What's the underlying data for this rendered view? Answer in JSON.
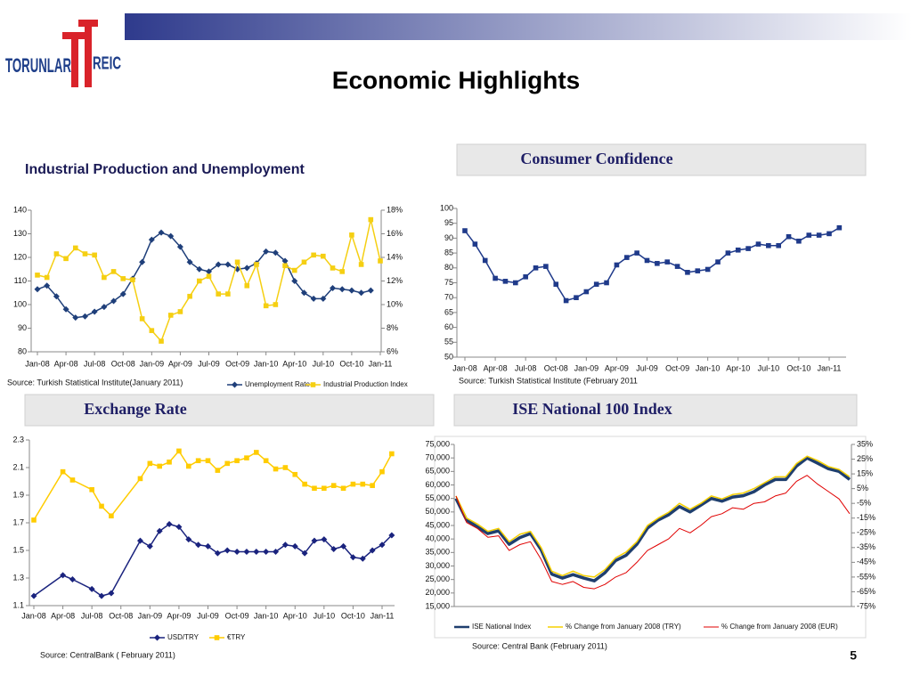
{
  "header": {
    "logo_left": "TORUNLAR",
    "logo_right": "REIC",
    "title": "Economic Highlights",
    "page_number": "5"
  },
  "chart_data": [
    {
      "type": "line",
      "title": "Industrial Production and Unemployment",
      "source": "Source: Turkish Statistical Institute(January 2011)",
      "x": [
        "2008-01",
        "2008-02",
        "2008-03",
        "2008-04",
        "2008-05",
        "2008-06",
        "2008-07",
        "2008-08",
        "2008-09",
        "2008-10",
        "2008-11",
        "2008-12",
        "2009-01",
        "2009-02",
        "2009-03",
        "2009-04",
        "2009-05",
        "2009-06",
        "2009-07",
        "2009-08",
        "2009-09",
        "2009-10",
        "2009-11",
        "2009-12",
        "2010-01",
        "2010-02",
        "2010-03",
        "2010-04",
        "2010-05",
        "2010-06",
        "2010-07",
        "2010-08",
        "2010-09",
        "2010-10",
        "2010-11",
        "2010-12",
        "2011-01"
      ],
      "xticks": [
        {
          "value": "2008-01",
          "label": "Jan-08"
        },
        {
          "value": "2008-04",
          "label": "Apr-08"
        },
        {
          "value": "2008-07",
          "label": "Jul-08"
        },
        {
          "value": "2008-10",
          "label": "Oct-08"
        },
        {
          "value": "2009-01",
          "label": "Jan-09"
        },
        {
          "value": "2009-04",
          "label": "Apr-09"
        },
        {
          "value": "2009-07",
          "label": "Jul-09"
        },
        {
          "value": "2009-10",
          "label": "Oct-09"
        },
        {
          "value": "2010-01",
          "label": "Jan-10"
        },
        {
          "value": "2010-04",
          "label": "Apr-10"
        },
        {
          "value": "2010-07",
          "label": "Jul-10"
        },
        {
          "value": "2010-10",
          "label": "Oct-10"
        },
        {
          "value": "2011-01",
          "label": "Jan-11"
        }
      ],
      "ylim": [
        80,
        140
      ],
      "yticks": [
        80,
        90,
        100,
        110,
        120,
        130,
        140
      ],
      "y2lim": [
        6,
        18
      ],
      "y2ticks": [
        {
          "value": 6,
          "label": "6%"
        },
        {
          "value": 8,
          "label": "8%"
        },
        {
          "value": 10,
          "label": "10%"
        },
        {
          "value": 12,
          "label": "12%"
        },
        {
          "value": 14,
          "label": "14%"
        },
        {
          "value": 16,
          "label": "16%"
        },
        {
          "value": 18,
          "label": "18%"
        }
      ],
      "series": [
        {
          "name": "Unemployment Rate",
          "color": "#1f3f7a",
          "marker": "diamond",
          "axis": "y2",
          "values": [
            11.3,
            11.6,
            10.7,
            9.6,
            8.9,
            9.0,
            9.4,
            9.8,
            10.3,
            10.9,
            12.2,
            13.6,
            15.5,
            16.1,
            15.8,
            14.9,
            13.6,
            13.0,
            12.8,
            13.4,
            13.4,
            13.0,
            13.1,
            13.5,
            14.5,
            14.4,
            13.7,
            12.0,
            11.0,
            10.5,
            10.5,
            11.4,
            11.3,
            11.2,
            11.0,
            11.2,
            null
          ]
        },
        {
          "name": "Industrial Production Index",
          "color": "#f5cf12",
          "marker": "square",
          "values": [
            112.5,
            111.5,
            121.5,
            119.5,
            124,
            121.5,
            121,
            111.5,
            114,
            111,
            110.5,
            94,
            89,
            84.5,
            95.5,
            97,
            103.5,
            110,
            112,
            104.5,
            104.5,
            118,
            108,
            117,
            99.5,
            100,
            116.5,
            114.5,
            118,
            121,
            120.5,
            115.5,
            114,
            129.5,
            117,
            136,
            118.5
          ]
        }
      ]
    },
    {
      "type": "line",
      "title": "Consumer Confidence",
      "source": "Source: Turkish Statistical Institute (February 2011",
      "x": [
        "2008-01",
        "2008-02",
        "2008-03",
        "2008-04",
        "2008-05",
        "2008-06",
        "2008-07",
        "2008-08",
        "2008-09",
        "2008-10",
        "2008-11",
        "2008-12",
        "2009-01",
        "2009-02",
        "2009-03",
        "2009-04",
        "2009-05",
        "2009-06",
        "2009-07",
        "2009-08",
        "2009-09",
        "2009-10",
        "2009-11",
        "2009-12",
        "2010-01",
        "2010-02",
        "2010-03",
        "2010-04",
        "2010-05",
        "2010-06",
        "2010-07",
        "2010-08",
        "2010-09",
        "2010-10",
        "2010-11",
        "2010-12",
        "2011-01",
        "2011-02"
      ],
      "xticks": [
        {
          "value": "2008-01",
          "label": "Jan-08"
        },
        {
          "value": "2008-04",
          "label": "Apr-08"
        },
        {
          "value": "2008-07",
          "label": "Jul-08"
        },
        {
          "value": "2008-10",
          "label": "Oct-08"
        },
        {
          "value": "2009-01",
          "label": "Jan-09"
        },
        {
          "value": "2009-04",
          "label": "Apr-09"
        },
        {
          "value": "2009-07",
          "label": "Jul-09"
        },
        {
          "value": "2009-10",
          "label": "Oct-09"
        },
        {
          "value": "2010-01",
          "label": "Jan-10"
        },
        {
          "value": "2010-04",
          "label": "Apr-10"
        },
        {
          "value": "2010-07",
          "label": "Jul-10"
        },
        {
          "value": "2010-10",
          "label": "Oct-10"
        },
        {
          "value": "2011-01",
          "label": "Jan-11"
        }
      ],
      "ylim": [
        50,
        100
      ],
      "yticks": [
        50,
        55,
        60,
        65,
        70,
        75,
        80,
        85,
        90,
        95,
        100
      ],
      "series": [
        {
          "color": "#1f3a8a",
          "marker": "square",
          "values": [
            92.5,
            88,
            82.5,
            76.5,
            75.5,
            75,
            77,
            80,
            80.5,
            74.5,
            69,
            70,
            72,
            74.5,
            75,
            81,
            83.5,
            85,
            82.5,
            81.5,
            82,
            80.5,
            78.5,
            79,
            79.5,
            82,
            85,
            86,
            86.5,
            88,
            87.5,
            87.5,
            90.5,
            89,
            91,
            91,
            91.5,
            93.5
          ]
        }
      ]
    },
    {
      "type": "line",
      "title": "Exchange Rate",
      "source": "Source: CentralBank ( February 2011)",
      "x": [
        "2008-01",
        "2008-04",
        "2008-05",
        "2008-07",
        "2008-08",
        "2008-09",
        "2008-12",
        "2009-01",
        "2009-02",
        "2009-03",
        "2009-04",
        "2009-05",
        "2009-06",
        "2009-07",
        "2009-08",
        "2009-09",
        "2009-10",
        "2009-11",
        "2009-12",
        "2010-01",
        "2010-02",
        "2010-03",
        "2010-04",
        "2010-05",
        "2010-06",
        "2010-07",
        "2010-08",
        "2010-09",
        "2010-10",
        "2010-11",
        "2010-12",
        "2011-01",
        "2011-02"
      ],
      "xticks": [
        {
          "value": "2008-01",
          "label": "Jan-08"
        },
        {
          "value": "2008-04",
          "label": "Apr-08"
        },
        {
          "value": "2008-07",
          "label": "Jul-08"
        },
        {
          "value": "2008-10",
          "label": "Oct-08"
        },
        {
          "value": "2009-01",
          "label": "Jan-09"
        },
        {
          "value": "2009-04",
          "label": "Apr-09"
        },
        {
          "value": "2009-07",
          "label": "Jul-09"
        },
        {
          "value": "2009-10",
          "label": "Oct-09"
        },
        {
          "value": "2010-01",
          "label": "Jan-10"
        },
        {
          "value": "2010-04",
          "label": "Apr-10"
        },
        {
          "value": "2010-07",
          "label": "Jul-10"
        },
        {
          "value": "2010-10",
          "label": "Oct-10"
        },
        {
          "value": "2011-01",
          "label": "Jan-11"
        }
      ],
      "ylim": [
        1.1,
        2.3
      ],
      "yticks": [
        1.1,
        1.3,
        1.5,
        1.7,
        1.9,
        2.1,
        2.3
      ],
      "series": [
        {
          "name": "USD/TRY",
          "color": "#1a237e",
          "marker": "diamond",
          "values": [
            1.17,
            1.32,
            1.29,
            1.22,
            1.17,
            1.19,
            1.57,
            1.53,
            1.64,
            1.69,
            1.67,
            1.58,
            1.54,
            1.53,
            1.48,
            1.5,
            1.49,
            1.49,
            1.49,
            1.49,
            1.49,
            1.54,
            1.53,
            1.48,
            1.57,
            1.58,
            1.51,
            1.53,
            1.45,
            1.44,
            1.5,
            1.54,
            1.61
          ]
        },
        {
          "name": "€TRY",
          "color": "#ffcc00",
          "marker": "square",
          "values": [
            1.72,
            2.07,
            2.01,
            1.94,
            1.82,
            1.75,
            2.02,
            2.13,
            2.11,
            2.14,
            2.22,
            2.11,
            2.15,
            2.15,
            2.08,
            2.13,
            2.15,
            2.17,
            2.21,
            2.15,
            2.09,
            2.1,
            2.05,
            1.98,
            1.95,
            1.95,
            1.97,
            1.95,
            1.98,
            1.98,
            1.97,
            2.07,
            2.2
          ]
        }
      ]
    },
    {
      "type": "line",
      "title": "ISE National 100 Index",
      "source": "Source: Central Bank (February 2011)",
      "ylim": [
        15000,
        75000
      ],
      "yticks": [
        {
          "value": 15000,
          "label": "15,000"
        },
        {
          "value": 20000,
          "label": "20,000"
        },
        {
          "value": 25000,
          "label": "25,000"
        },
        {
          "value": 30000,
          "label": "30,000"
        },
        {
          "value": 35000,
          "label": "35,000"
        },
        {
          "value": 40000,
          "label": "40,000"
        },
        {
          "value": 45000,
          "label": "45,000"
        },
        {
          "value": 50000,
          "label": "50,000"
        },
        {
          "value": 55000,
          "label": "55,000"
        },
        {
          "value": 60000,
          "label": "60,000"
        },
        {
          "value": 65000,
          "label": "65,000"
        },
        {
          "value": 70000,
          "label": "70,000"
        },
        {
          "value": 75000,
          "label": "75,000"
        }
      ],
      "y2lim": [
        -75,
        35
      ],
      "y2ticks": [
        {
          "value": 35,
          "label": "35%"
        },
        {
          "value": 25,
          "label": "25%"
        },
        {
          "value": 15,
          "label": "15%"
        },
        {
          "value": 5,
          "label": "5%"
        },
        {
          "value": -5,
          "label": "-5%"
        },
        {
          "value": -15,
          "label": "-15%"
        },
        {
          "value": -25,
          "label": "-25%"
        },
        {
          "value": -35,
          "label": "-35%"
        },
        {
          "value": -45,
          "label": "-45%"
        },
        {
          "value": -55,
          "label": "-55%"
        },
        {
          "value": -65,
          "label": "-65%"
        },
        {
          "value": -75,
          "label": "-75%"
        }
      ],
      "series": [
        {
          "name": "ISE National Index",
          "color": "#1f3f6e",
          "marker": "none",
          "width": 3.5,
          "values": [
            55000,
            47000,
            44500,
            42000,
            43000,
            38000,
            40500,
            42000,
            36000,
            27000,
            25500,
            26800,
            25500,
            24500,
            27500,
            32000,
            34000,
            38000,
            44000,
            47000,
            49000,
            52000,
            50000,
            52500,
            55000,
            54000,
            55500,
            56000,
            57500,
            60000,
            62000,
            62000,
            67000,
            70000,
            68000,
            66000,
            65000,
            62000
          ]
        },
        {
          "name": "% Change from January 2008 (TRY)",
          "color": "#f5d000",
          "marker": "none",
          "axis": "y2",
          "width": 1.5,
          "values": [
            0,
            -15,
            -19,
            -24,
            -22,
            -31,
            -26,
            -24,
            -35,
            -51,
            -54,
            -51,
            -54,
            -55,
            -50,
            -42,
            -38,
            -31,
            -20,
            -15,
            -11,
            -5,
            -9,
            -5,
            0,
            -2,
            1,
            2,
            5,
            9,
            13,
            13,
            22,
            27,
            24,
            20,
            18,
            13
          ]
        },
        {
          "name": "% Change from January 2008 (EUR)",
          "color": "#e00000",
          "marker": "none",
          "axis": "y2",
          "width": 1,
          "values": [
            0,
            -18,
            -22,
            -28,
            -27,
            -37,
            -33,
            -31,
            -43,
            -58,
            -60,
            -58,
            -62,
            -63,
            -60,
            -55,
            -52,
            -45,
            -37,
            -33,
            -29,
            -22,
            -25,
            -20,
            -14,
            -12,
            -8,
            -9,
            -5,
            -4,
            0,
            2,
            10,
            14,
            8,
            3,
            -2,
            -12
          ]
        }
      ]
    }
  ]
}
